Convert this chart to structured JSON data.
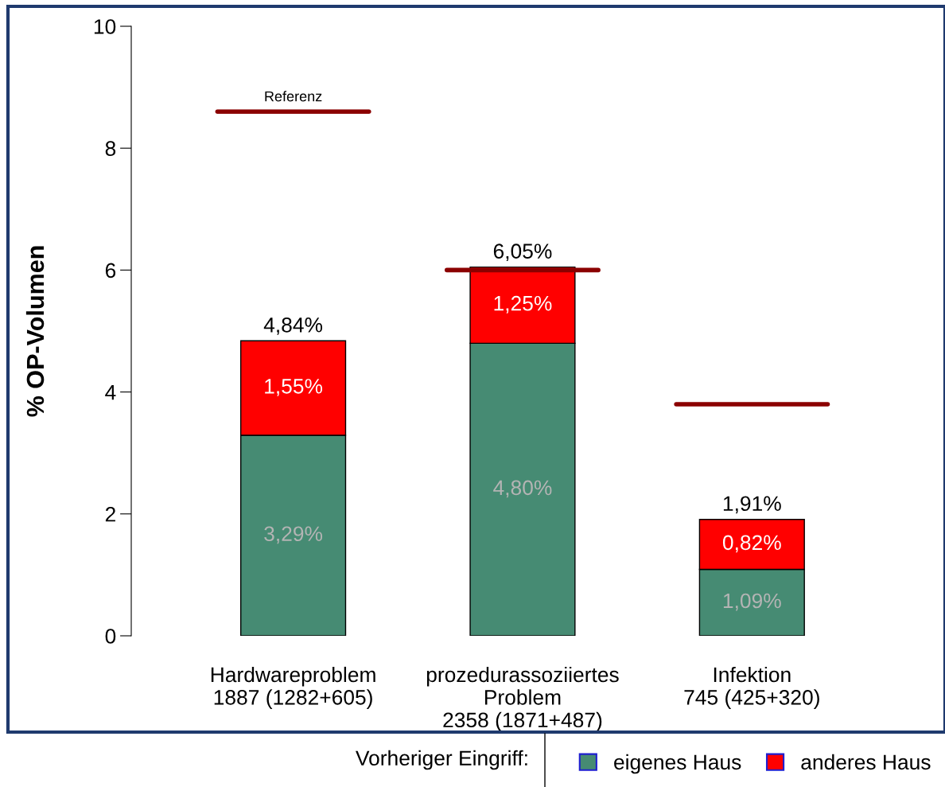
{
  "chart_data": {
    "type": "bar",
    "stacked": true,
    "categories": [
      "Hardwareproblem\n1887 (1282+605)",
      "prozedurassoziiertes\nProblem\n2358 (1871+487)",
      "Infektion\n745 (425+320)"
    ],
    "ylabel": "% OP-Volumen",
    "ylim": [
      0,
      10
    ],
    "yticks": [
      0,
      2,
      4,
      6,
      8,
      10
    ],
    "grid": false,
    "legend": "bottom",
    "legend_title": "Vorheriger Eingriff:",
    "series": [
      {
        "name": "eigenes Haus",
        "color": "#468b73",
        "values": [
          3.29,
          4.8,
          1.09
        ],
        "value_labels": [
          "3,29%",
          "4,80%",
          "1,09%"
        ]
      },
      {
        "name": "anderes Haus",
        "color": "#ff0000",
        "values": [
          1.55,
          1.25,
          0.82
        ],
        "value_labels": [
          "1,55%",
          "1,25%",
          "0,82%"
        ]
      }
    ],
    "ref_lines": [
      {
        "axis": "y",
        "value": 8.6,
        "label": "Referenz",
        "color": "#8b0000"
      },
      {
        "axis": "y",
        "value": 6.0,
        "color": "#8b0000"
      },
      {
        "axis": "y",
        "value": 3.8,
        "color": "#8b0000"
      }
    ],
    "totals": [
      "4,84%",
      "6,05%",
      "1,91%"
    ]
  }
}
